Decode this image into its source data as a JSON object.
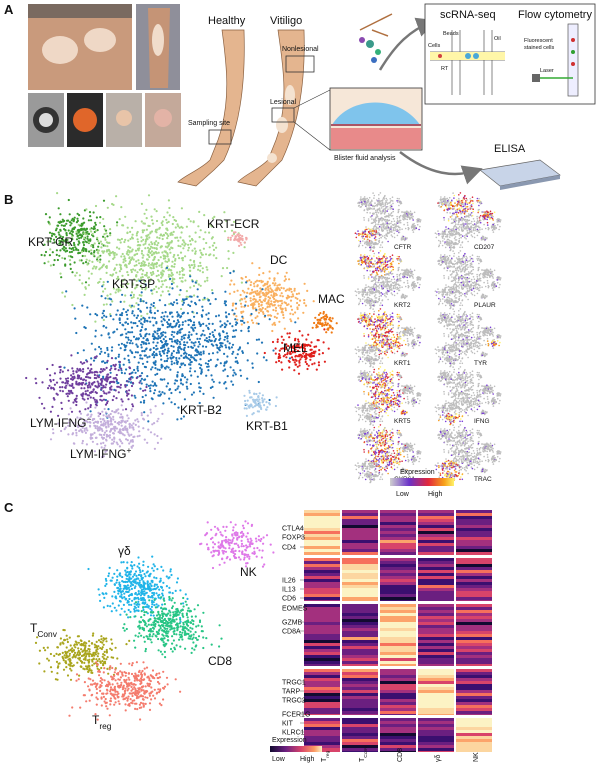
{
  "panel_a": {
    "label": "A",
    "healthy": "Healthy",
    "vitiligo": "Vitiligo",
    "nonlesional": "Nonlesional",
    "lesional": "Lesional",
    "sampling_site": "Sampling site",
    "blister": "Blister fluid analysis",
    "scrna": "scRNA-seq",
    "flow": "Flow cytometry",
    "beads": "Beads",
    "cells": "Cells",
    "oil": "Oil",
    "rt": "RT",
    "fluor": [
      "Fluorescent",
      "stained cells"
    ],
    "laser": "Laser",
    "elisa": "ELISA"
  },
  "panel_b": {
    "label": "B",
    "clusters": [
      {
        "text": "KRT-GR",
        "color": "#3b9b2c"
      },
      {
        "text": "KRT-SP",
        "color": "#a6d98a"
      },
      {
        "text": "KRT-ECR",
        "color": "#f2a9a9"
      },
      {
        "text": "DC",
        "color": "#f9b060"
      },
      {
        "text": "MAC",
        "color": "#f07a14"
      },
      {
        "text": "MEL",
        "color": "#e0201c"
      },
      {
        "text": "KRT-B2",
        "color": "#1f74b6"
      },
      {
        "text": "KRT-B1",
        "color": "#a9cbe8"
      },
      {
        "text": {
          "main": "LYM-IFNG",
          "sup": "−"
        },
        "color": "#6f3e9e"
      },
      {
        "text": {
          "main": "LYM-IFNG",
          "sup": "+"
        },
        "color": "#c3aedb"
      }
    ],
    "genes": [
      "CFTR",
      "CD207",
      "KRT2",
      "PLAUR",
      "KRT1",
      "TYR",
      "KRT5",
      "IFNG",
      "CYR61",
      "TRAC"
    ],
    "legend": {
      "title": "Expression",
      "low": "Low",
      "high": "High"
    }
  },
  "panel_c": {
    "label": "C",
    "clusters": [
      {
        "text": {
          "main": "γδ"
        },
        "color": "#21b4e8"
      },
      {
        "text": {
          "main": "CD8"
        },
        "color": "#27c585"
      },
      {
        "text": {
          "main": "T",
          "sub": "Conv"
        },
        "color": "#a9a51d"
      },
      {
        "text": {
          "main": "T",
          "sub": "reg"
        },
        "color": "#f47b6d"
      },
      {
        "text": {
          "main": "NK"
        },
        "color": "#de78e8"
      }
    ],
    "heatmap": {
      "row_groups": [
        [
          "CTLA4",
          "FOXP3",
          "CD4"
        ],
        [
          "IL26",
          "IL13",
          "CD6"
        ],
        [
          "EOMES",
          "GZMB",
          "CD8A"
        ],
        [
          "TRGC1",
          "TARP",
          "TRGC2"
        ],
        [
          "FCER1G",
          "KIT",
          "KLRC1"
        ]
      ],
      "columns": [
        {
          "main": "T",
          "sub": "reg"
        },
        {
          "main": "T",
          "sub": "Conv"
        },
        {
          "main": "CD8"
        },
        {
          "main": "γδ"
        },
        {
          "main": "NK"
        }
      ],
      "legend": {
        "title": "Expression",
        "low": "Low",
        "high": "High"
      }
    }
  }
}
